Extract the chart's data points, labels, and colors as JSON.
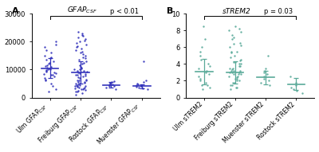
{
  "panel_A": {
    "title_parts": [
      "GFAP",
      "CSF"
    ],
    "title_main": "GFAP",
    "title_sub": "CSF",
    "p_text": "p < 0.01",
    "ylim": [
      0,
      30000
    ],
    "yticks": [
      0,
      10000,
      20000,
      30000
    ],
    "ytick_labels": [
      "0",
      "10000",
      "20000",
      "30000"
    ],
    "groups": [
      "Ulm GFAPₙCSF₟",
      "Freiburg GFAPₙCSF₟",
      "Rostock GFAPₙCSF₟",
      "Muenster GFAPₙCSF₟"
    ],
    "group_labels_main": [
      "Ulm GFAP",
      "Freiburg GFAP",
      "Rostock GFAP",
      "Muenster GFAP"
    ],
    "group_labels_sub": [
      "CSF",
      "CSF",
      "CSF",
      "CSF"
    ],
    "means": [
      10500,
      9000,
      4500,
      4000
    ],
    "sds": [
      3500,
      4000,
      1000,
      800
    ],
    "dot_color": "#3333bb",
    "n_dots": [
      35,
      70,
      10,
      12
    ],
    "dot_data": [
      [
        2000,
        3000,
        4000,
        5000,
        6000,
        6500,
        7000,
        7500,
        8000,
        8200,
        8500,
        8800,
        9000,
        9200,
        9500,
        9800,
        10000,
        10200,
        10500,
        10800,
        11000,
        11200,
        11500,
        12000,
        12500,
        13000,
        13500,
        14000,
        14500,
        15000,
        16000,
        17000,
        18000,
        19000,
        20000
      ],
      [
        1000,
        1500,
        2000,
        2200,
        2500,
        2800,
        3000,
        3000,
        3200,
        3300,
        3500,
        3700,
        3800,
        4000,
        4000,
        4200,
        4500,
        4800,
        5000,
        5200,
        5500,
        6000,
        6200,
        6500,
        7000,
        7500,
        8000,
        8500,
        9000,
        9500,
        10000,
        10500,
        11000,
        12000,
        13000,
        14000,
        15000,
        16000,
        17000,
        18000,
        19000,
        20000,
        21000,
        22000,
        23000,
        7200,
        7800,
        8200,
        8800,
        9200,
        9600,
        10200,
        10800,
        11500,
        12500,
        13500,
        14500,
        15500,
        16500,
        17500,
        18500,
        19500,
        20500,
        21500,
        22500,
        23500,
        4500,
        5000,
        5500,
        6000
      ],
      [
        3000,
        3500,
        4000,
        4200,
        4500,
        4800,
        5000,
        5200,
        5500,
        5800
      ],
      [
        3000,
        3200,
        3500,
        3800,
        4000,
        4200,
        4500,
        4800,
        5000,
        5500,
        6000,
        13000
      ]
    ]
  },
  "panel_B": {
    "title_main": "sTREM2",
    "p_text": "p = 0.03",
    "ylim": [
      0,
      10
    ],
    "yticks": [
      0,
      2,
      4,
      6,
      8,
      10
    ],
    "ytick_labels": [
      "0",
      "2",
      "4",
      "6",
      "8",
      "10"
    ],
    "group_labels_main": [
      "Ulm sTREM2",
      "Freiburg sTREM2",
      "Muenster sTREM2",
      "Rostock sTREM2"
    ],
    "group_labels_sub": [
      "",
      "",
      "",
      ""
    ],
    "means": [
      3.1,
      3.0,
      2.4,
      1.6
    ],
    "sds": [
      1.5,
      1.3,
      0.8,
      0.7
    ],
    "dot_color": "#5aaa99",
    "n_dots": [
      20,
      50,
      10,
      7
    ],
    "dot_data": [
      [
        1.0,
        1.2,
        1.5,
        1.8,
        2.0,
        2.2,
        2.5,
        2.8,
        3.0,
        3.2,
        3.5,
        3.8,
        4.0,
        4.5,
        5.0,
        5.5,
        6.0,
        7.0,
        8.5,
        1.5
      ],
      [
        1.0,
        1.2,
        1.5,
        1.5,
        1.8,
        2.0,
        2.0,
        2.2,
        2.5,
        2.5,
        2.8,
        2.8,
        3.0,
        3.0,
        3.0,
        3.2,
        3.2,
        3.5,
        3.5,
        3.8,
        4.0,
        4.0,
        4.2,
        4.5,
        5.0,
        5.5,
        6.0,
        6.5,
        7.0,
        7.5,
        8.0,
        8.5,
        1.8,
        2.2,
        2.8,
        3.2,
        3.8,
        4.2,
        4.8,
        5.5,
        6.2,
        7.2,
        8.2,
        1.2,
        2.4,
        3.4,
        4.4,
        5.4,
        6.4,
        7.8
      ],
      [
        1.5,
        1.8,
        2.0,
        2.2,
        2.5,
        2.8,
        3.0,
        3.2,
        3.5,
        5.0
      ],
      [
        0.5,
        0.8,
        1.0,
        1.2,
        1.5,
        1.8,
        2.5
      ]
    ]
  },
  "background_color": "#ffffff",
  "panel_label_fontsize": 8,
  "tick_fontsize": 6,
  "axis_label_fontsize": 5.5
}
